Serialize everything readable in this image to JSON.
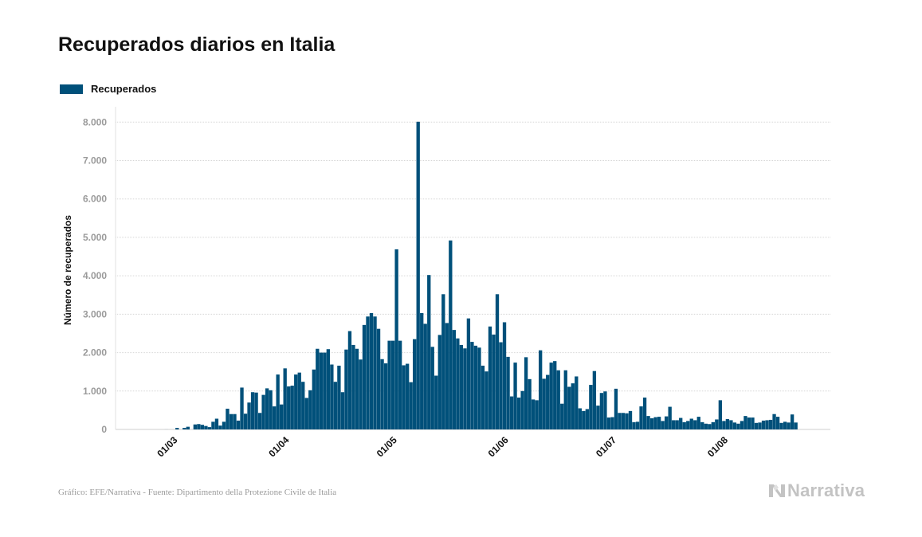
{
  "title": "Recuperados diarios en Italia",
  "footer": "Gráfico: EFE/Narrativa - Fuente: Dipartimento della Protezione Civile de Italia",
  "brand": "Narrativa",
  "brand_icon": "narrativa-logo-icon",
  "colors": {
    "bar": "#00507a",
    "grid": "#d7d7d7",
    "tick": "#9a9a9a"
  },
  "chart_data": {
    "type": "bar",
    "title": "Recuperados diarios en Italia",
    "ylabel": "Número de recuperados",
    "xlabel": "",
    "ylim": [
      0,
      8400
    ],
    "yticks": [
      0,
      1000,
      2000,
      3000,
      4000,
      5000,
      6000,
      7000,
      8000
    ],
    "ytick_labels": [
      "0",
      "1.000",
      "2.000",
      "3.000",
      "4.000",
      "5.000",
      "6.000",
      "7.000",
      "8.000"
    ],
    "grid": true,
    "legend": "top-left",
    "date_range": [
      "2020-02-24",
      "2020-08-22"
    ],
    "xticks": [
      {
        "date": "2020-03-01",
        "label": "01/03"
      },
      {
        "date": "2020-04-01",
        "label": "01/04"
      },
      {
        "date": "2020-05-01",
        "label": "01/05"
      },
      {
        "date": "2020-06-01",
        "label": "01/06"
      },
      {
        "date": "2020-07-01",
        "label": "01/07"
      },
      {
        "date": "2020-08-01",
        "label": "01/08"
      }
    ],
    "series": [
      {
        "name": "Recuperados",
        "color": "#00507a",
        "values": [
          0,
          0,
          0,
          0,
          0,
          1,
          0,
          0,
          40,
          0,
          40,
          70,
          0,
          130,
          140,
          120,
          90,
          60,
          200,
          280,
          100,
          200,
          540,
          400,
          400,
          230,
          1090,
          410,
          700,
          970,
          960,
          430,
          900,
          1070,
          1020,
          600,
          1430,
          650,
          1590,
          1120,
          1140,
          1430,
          1480,
          1240,
          820,
          1020,
          1560,
          2100,
          2000,
          2000,
          2090,
          1690,
          1240,
          1660,
          970,
          2080,
          2560,
          2200,
          2100,
          1820,
          2720,
          2940,
          3030,
          2940,
          2620,
          1830,
          1720,
          2310,
          2310,
          4690,
          2310,
          1670,
          1710,
          1230,
          2350,
          8010,
          3030,
          2750,
          4020,
          2150,
          1400,
          2460,
          3520,
          2770,
          4920,
          2590,
          2370,
          2200,
          2110,
          2890,
          2280,
          2180,
          2130,
          1660,
          1510,
          2680,
          2470,
          3520,
          2270,
          2790,
          1890,
          860,
          1740,
          830,
          1000,
          1880,
          1310,
          780,
          760,
          2060,
          1320,
          1420,
          1740,
          1780,
          1540,
          670,
          1540,
          1110,
          1200,
          1380,
          550,
          480,
          530,
          1160,
          1520,
          620,
          950,
          990,
          310,
          320,
          1060,
          430,
          430,
          420,
          480,
          190,
          200,
          600,
          830,
          350,
          290,
          320,
          330,
          220,
          340,
          590,
          240,
          240,
          300,
          190,
          220,
          280,
          240,
          330,
          190,
          150,
          140,
          190,
          260,
          760,
          220,
          270,
          240,
          180,
          150,
          220,
          350,
          310,
          310,
          170,
          180,
          230,
          240,
          250,
          400,
          330,
          170,
          200,
          180,
          390,
          180
        ]
      }
    ]
  }
}
